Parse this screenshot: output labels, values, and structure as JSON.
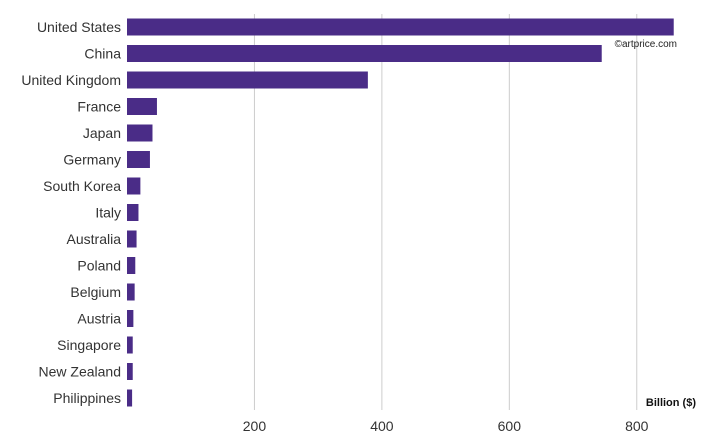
{
  "chart_data": {
    "type": "bar",
    "orientation": "horizontal",
    "categories": [
      "United States",
      "China",
      "United Kingdom",
      "France",
      "Japan",
      "Germany",
      "South Korea",
      "Italy",
      "Australia",
      "Poland",
      "Belgium",
      "Austria",
      "Singapore",
      "New Zealand",
      "Philippines"
    ],
    "values": [
      858,
      745,
      378,
      47,
      40,
      36,
      21,
      18,
      15,
      13,
      12,
      10,
      9,
      9,
      8
    ],
    "xlim": [
      0,
      860
    ],
    "xticks": [
      200,
      400,
      600,
      800
    ],
    "unit_label": "Billion ($)",
    "credit": "©artprice.com",
    "bar_color": "#4a2c87",
    "grid": "vertical"
  }
}
